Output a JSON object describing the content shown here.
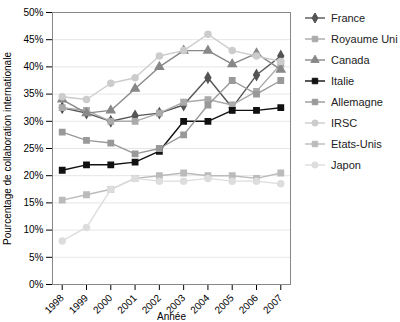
{
  "chart_data": {
    "type": "line",
    "x": [
      1998,
      1999,
      2000,
      2001,
      2002,
      2003,
      2004,
      2005,
      2006,
      2007
    ],
    "series": [
      {
        "name": "France",
        "color": "#555555",
        "marker": "diamond",
        "line_style": "solid",
        "values": [
          32.5,
          31.5,
          30.0,
          31.0,
          31.5,
          33.0,
          38.0,
          32.5,
          38.5,
          42.0
        ]
      },
      {
        "name": "Royaume Uni",
        "color": "#aaaaaa",
        "marker": "square",
        "line_style": "solid",
        "values": [
          32.5,
          32.0,
          30.0,
          30.0,
          31.5,
          33.5,
          34.0,
          33.0,
          35.5,
          40.5
        ]
      },
      {
        "name": "Canada",
        "color": "#888888",
        "marker": "triangle",
        "line_style": "solid",
        "values": [
          34.0,
          31.5,
          32.0,
          36.0,
          40.0,
          43.0,
          43.0,
          40.5,
          42.5,
          39.5
        ]
      },
      {
        "name": "Italie",
        "color": "#111111",
        "marker": "square",
        "line_style": "solid",
        "values": [
          21.0,
          22.0,
          22.0,
          22.5,
          24.5,
          30.0,
          30.0,
          32.0,
          32.0,
          32.5
        ]
      },
      {
        "name": "Allemagne",
        "color": "#999999",
        "marker": "square",
        "line_style": "solid",
        "values": [
          28.0,
          26.5,
          26.0,
          24.0,
          25.0,
          27.5,
          33.0,
          37.5,
          35.0,
          37.5
        ]
      },
      {
        "name": "IRSC",
        "color": "#cccccc",
        "marker": "circle",
        "line_style": "solid",
        "values": [
          34.5,
          34.0,
          37.0,
          38.0,
          42.0,
          43.0,
          46.0,
          43.0,
          42.0,
          41.0
        ]
      },
      {
        "name": "Etats-Unis",
        "color": "#bbbbbb",
        "marker": "square",
        "line_style": "solid",
        "values": [
          15.5,
          16.5,
          17.5,
          19.5,
          20.0,
          20.5,
          20.0,
          20.0,
          19.5,
          20.5
        ]
      },
      {
        "name": "Japon",
        "color": "#dddddd",
        "marker": "circle",
        "line_style": "solid",
        "values": [
          8.0,
          10.5,
          17.5,
          19.5,
          19.0,
          19.0,
          19.5,
          19.0,
          19.0,
          18.5
        ]
      }
    ],
    "xlabel": "Année",
    "ylabel": "Pourcentage de collaboration internationale",
    "xlim": [
      1997.6,
      2007.4
    ],
    "xticks": [
      1998,
      1999,
      2000,
      2001,
      2002,
      2003,
      2004,
      2005,
      2006,
      2007
    ],
    "ylim": [
      0,
      50
    ],
    "yticks": [
      {
        "value": 0,
        "label": "0%"
      },
      {
        "value": 5,
        "label": "5%"
      },
      {
        "value": 10,
        "label": "10%"
      },
      {
        "value": 15,
        "label": "15%"
      },
      {
        "value": 20,
        "label": "20%"
      },
      {
        "value": 25,
        "label": "25%"
      },
      {
        "value": 30,
        "label": "30%"
      },
      {
        "value": 35,
        "label": "35%"
      },
      {
        "value": 40,
        "label": "40%"
      },
      {
        "value": 45,
        "label": "45%"
      },
      {
        "value": 50,
        "label": "50%"
      }
    ],
    "grid": "y",
    "legend": "right"
  }
}
